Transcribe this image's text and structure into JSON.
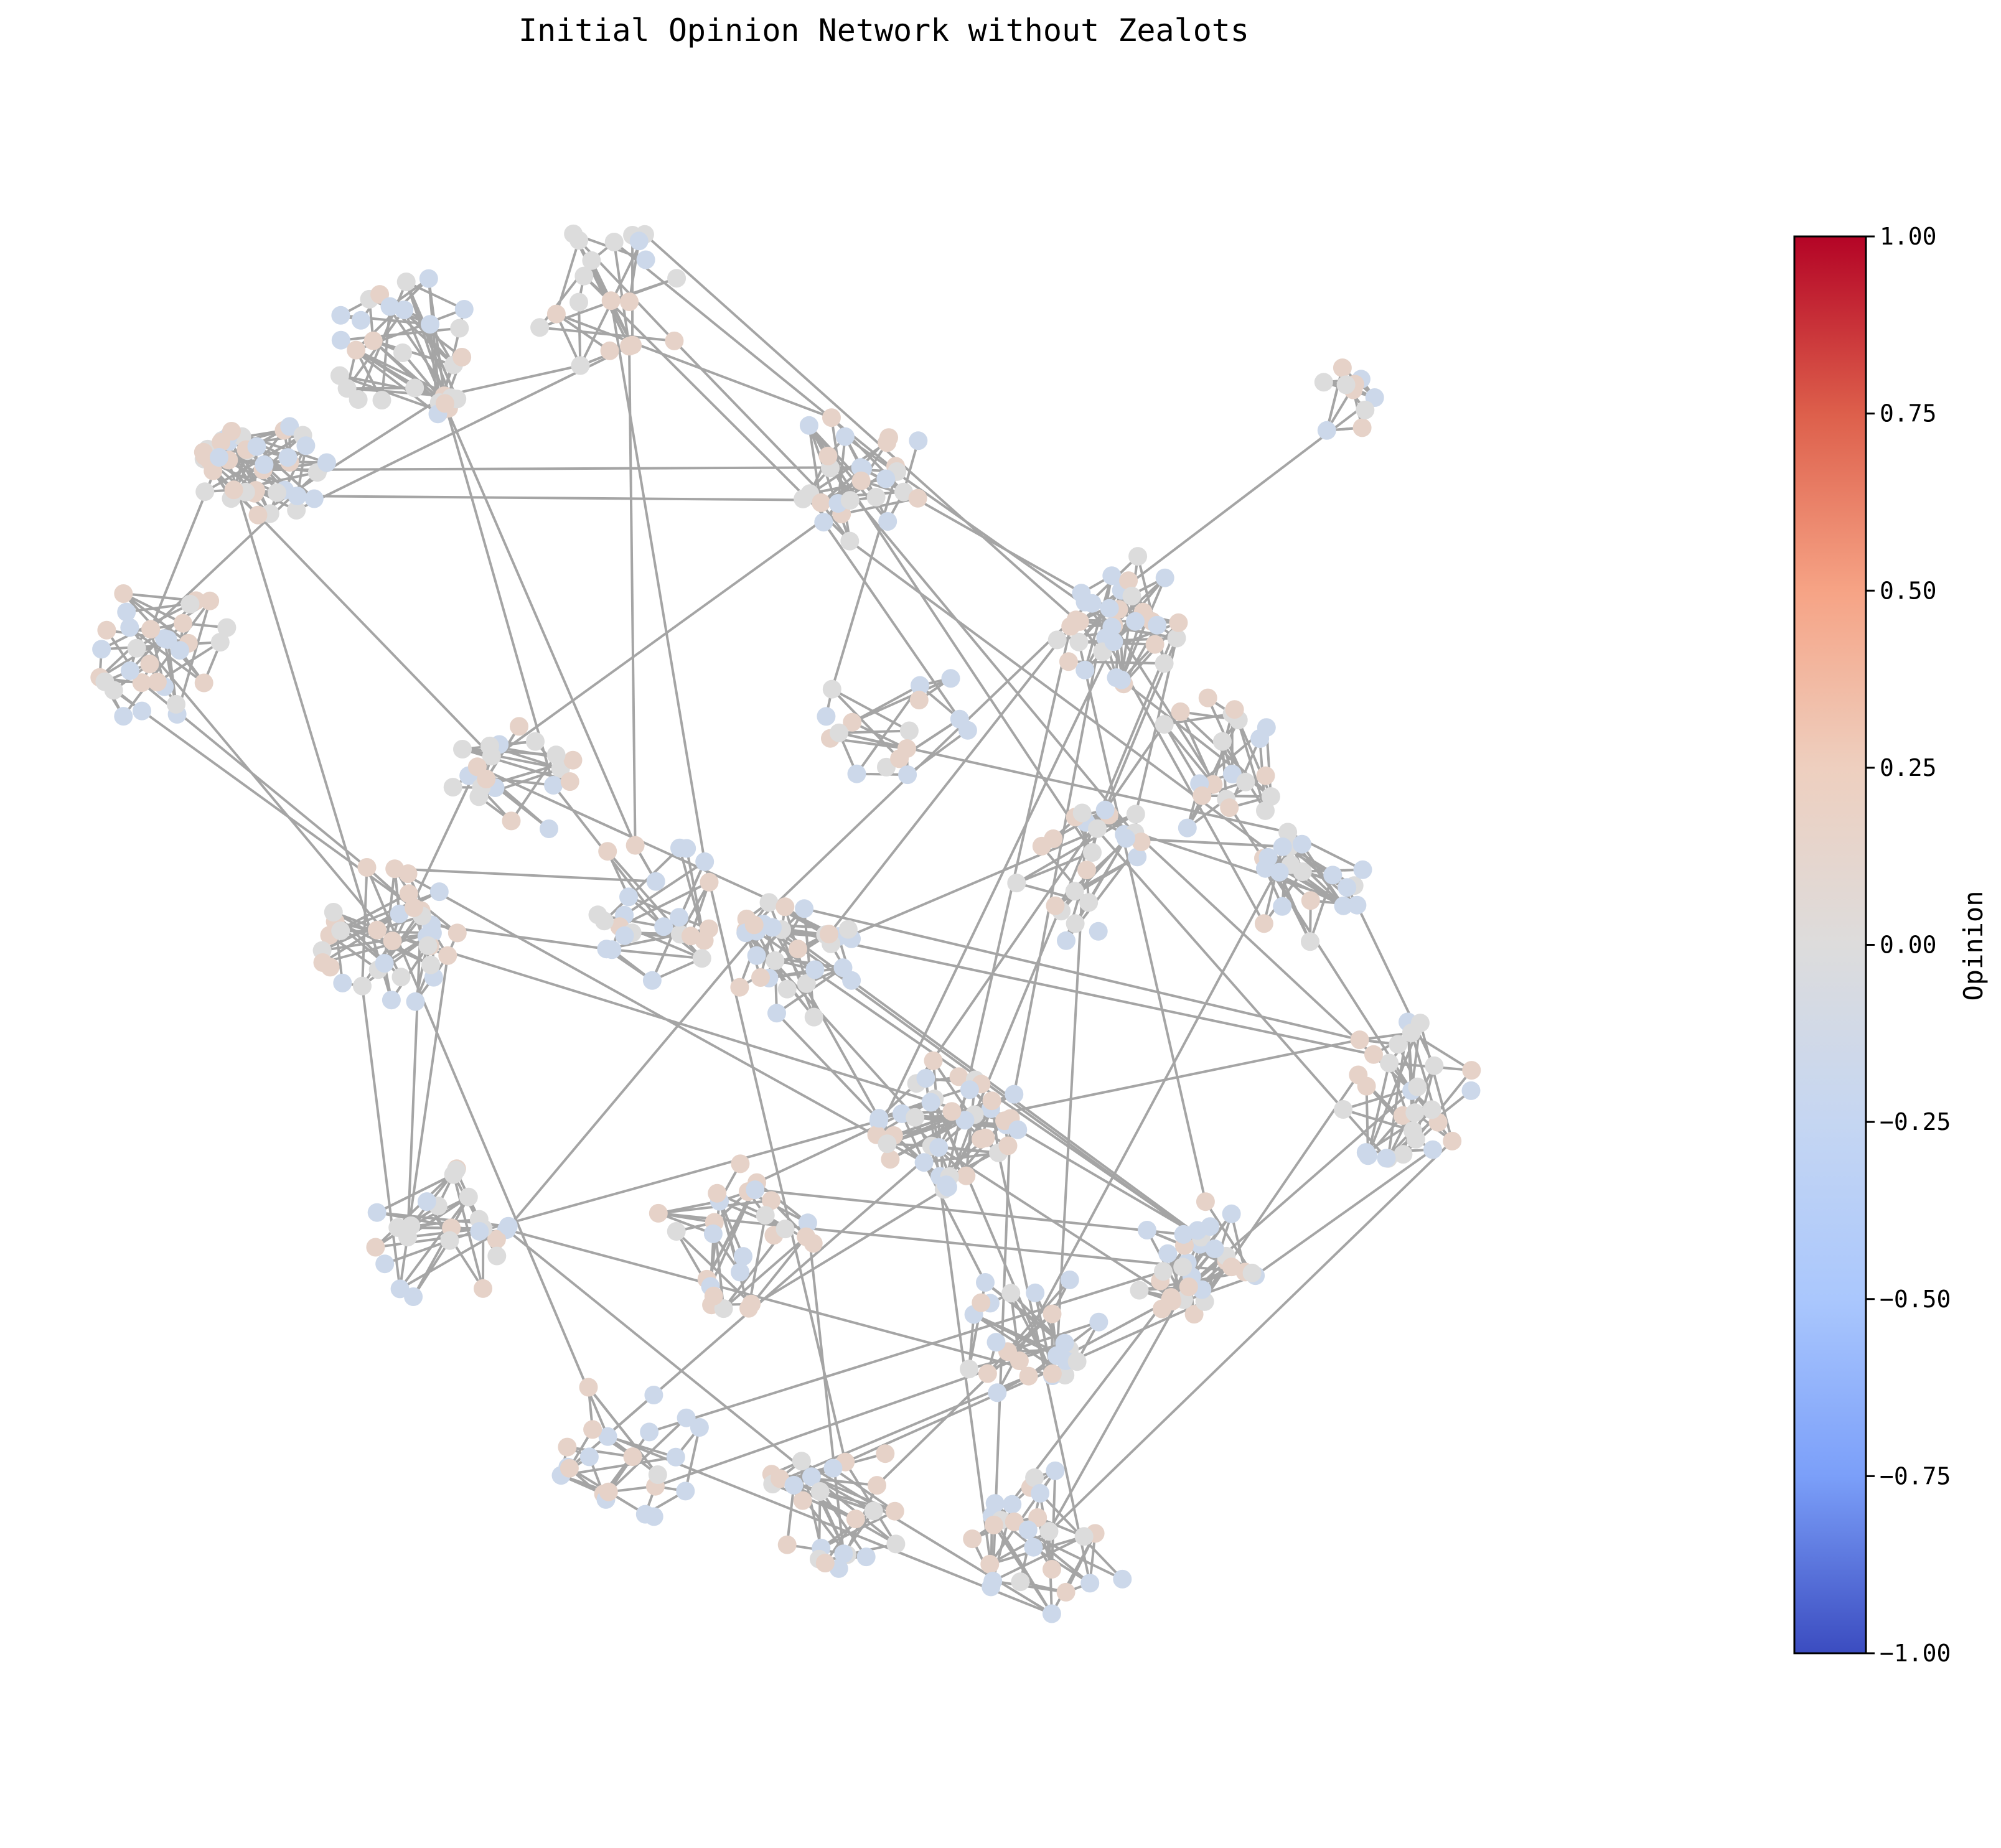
{
  "title": "Initial Opinion Network without Zealots",
  "colorbar": {
    "label": "Opinion",
    "colormap": "coolwarm",
    "range": [
      -1.0,
      1.0
    ],
    "ticks": [
      "1.00",
      "0.75",
      "0.50",
      "0.25",
      "0.00",
      "−0.25",
      "−0.50",
      "−0.75",
      "−1.00"
    ],
    "gradient": [
      "#b40426",
      "#dd5f4b",
      "#f6a385",
      "#eecfbf",
      "#dddcdc",
      "#c5d6f2",
      "#aac7fd",
      "#7b9ff9",
      "#3b4cc0"
    ]
  },
  "colors": {
    "edge": "#a5a5a5",
    "node_positive": "#e6d2c8",
    "node_neutral": "#dcdcdc",
    "node_negative": "#ccd8ea"
  }
}
